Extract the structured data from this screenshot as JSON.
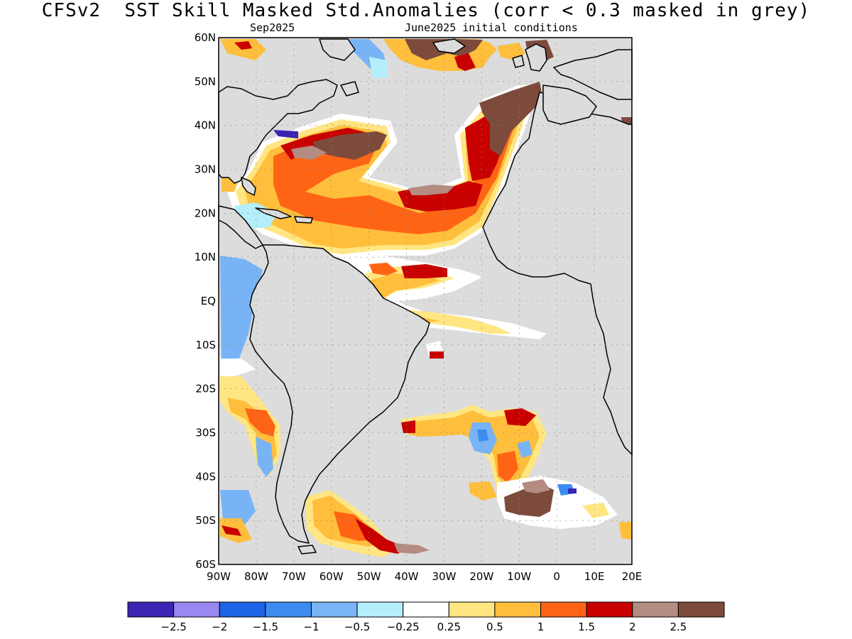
{
  "title": "CFSv2  SST Skill Masked Std.Anomalies (corr < 0.3 masked in grey)",
  "subtitle_left": "Sep2025",
  "subtitle_right": "June2025 initial conditions",
  "lat_labels": [
    "60N",
    "50N",
    "40N",
    "30N",
    "20N",
    "10N",
    "EQ",
    "10S",
    "20S",
    "30S",
    "40S",
    "50S",
    "60S"
  ],
  "lon_labels": [
    "90W",
    "80W",
    "70W",
    "60W",
    "50W",
    "40W",
    "30W",
    "20W",
    "10W",
    "0",
    "10E",
    "20E"
  ],
  "colorbar": {
    "colors": [
      "#3a24b4",
      "#9a87f0",
      "#1e64e6",
      "#3c8cf0",
      "#78b4f5",
      "#b4eefa",
      "#ffffff",
      "#ffe682",
      "#ffbe3c",
      "#ff6414",
      "#c80000",
      "#b48c82",
      "#7d4b3c"
    ],
    "tick_labels": [
      "-2.5",
      "-2",
      "-1.5",
      "-1",
      "-0.5",
      "-0.25",
      "0.25",
      "0.5",
      "1",
      "1.5",
      "2",
      "2.5"
    ]
  },
  "colors": {
    "mask_grey": "#dcdcdc",
    "land": "#dcdcdc",
    "coast": "#000000"
  }
}
